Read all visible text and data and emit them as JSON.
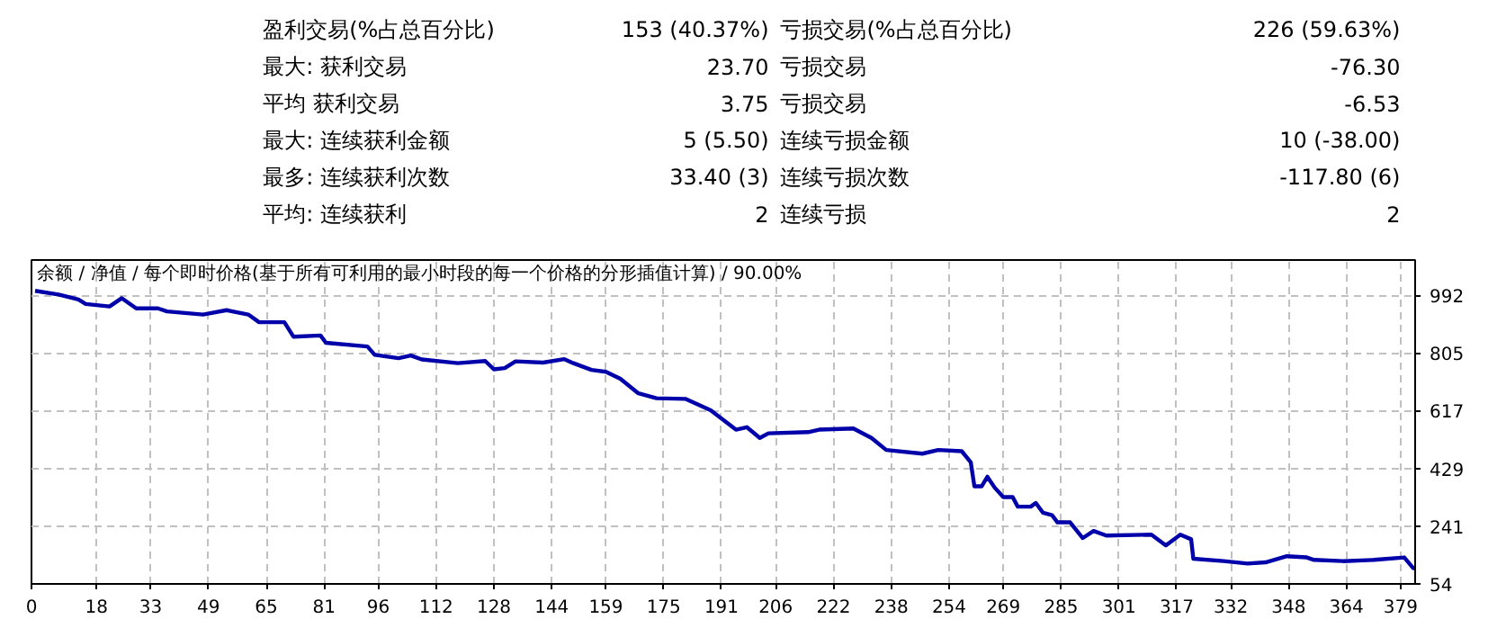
{
  "chart_data": [
    {
      "type": "other",
      "annotations": [
        "盈利交易(%占总百分比)",
        "153 (40.37%)",
        "亏损交易(%占总百分比)",
        "226 (59.63%)",
        "最大: 获利交易",
        "23.70",
        "亏损交易",
        "-76.30",
        "平均 获利交易",
        "3.75",
        "亏损交易",
        "-6.53",
        "最大: 连续获利金额",
        "5 (5.50)",
        "连续亏损金额",
        "10 (-38.00)",
        "最多: 连续获利次数",
        "33.40 (3)",
        "连续亏损次数",
        "-117.80 (6)",
        "平均: 连续获利",
        "2",
        "连续亏损",
        "2"
      ]
    },
    {
      "type": "line",
      "title": "余额 / 净值 / 每个即时价格(基于所有可利用的最小时段的每一个价格的分形插值计算) / 90.00%",
      "xlim": [
        0,
        383
      ],
      "ylim": [
        54,
        1106
      ],
      "xticks": [
        0,
        18,
        33,
        49,
        65,
        81,
        96,
        112,
        128,
        144,
        159,
        175,
        191,
        206,
        222,
        238,
        254,
        269,
        285,
        301,
        317,
        332,
        348,
        364,
        379
      ],
      "yticks": [
        54,
        241,
        429,
        617,
        805,
        992
      ],
      "grid": true,
      "line_style": "solid",
      "marker": "none",
      "series": [
        {
          "color": "#0000aa",
          "x": [
            1,
            7.5,
            13,
            15,
            21.6,
            25,
            29,
            35,
            37.5,
            47.5,
            54,
            60,
            63,
            70,
            72.5,
            80,
            81.5,
            93,
            95,
            101.6,
            105,
            108,
            118,
            125.6,
            128,
            131,
            134,
            141.6,
            147.5,
            150,
            155,
            159,
            163,
            168,
            173,
            181,
            188,
            195,
            198,
            201.6,
            204,
            215,
            218,
            227.5,
            232.5,
            236.6,
            246.6,
            251,
            257.5,
            260,
            261,
            263,
            264.6,
            266.6,
            269,
            271.6,
            273,
            276.6,
            278,
            280,
            282.5,
            284,
            287.5,
            291,
            294,
            297.5,
            310,
            314,
            318,
            321,
            321.6,
            330,
            336.6,
            341.6,
            347.5,
            353,
            355,
            363,
            371.6,
            380,
            382.5,
            383
          ],
          "values": [
            1006,
            994,
            978,
            963,
            955,
            982,
            949,
            949,
            939,
            929,
            943,
            929,
            904,
            904,
            857,
            861,
            837,
            825,
            798,
            787,
            796,
            783,
            771,
            778,
            751,
            755,
            777,
            773,
            784,
            771,
            749,
            743,
            720,
            673,
            657,
            655,
            618,
            555,
            563,
            528,
            543,
            547,
            555,
            559,
            528,
            489,
            477,
            489,
            485,
            449,
            371,
            371,
            402,
            367,
            336,
            336,
            305,
            305,
            317,
            285,
            277,
            254,
            254,
            203,
            226,
            211,
            214,
            179,
            214,
            199,
            136,
            128,
            120,
            124,
            144,
            140,
            132,
            128,
            132,
            140,
            105,
            105
          ]
        }
      ]
    }
  ]
}
